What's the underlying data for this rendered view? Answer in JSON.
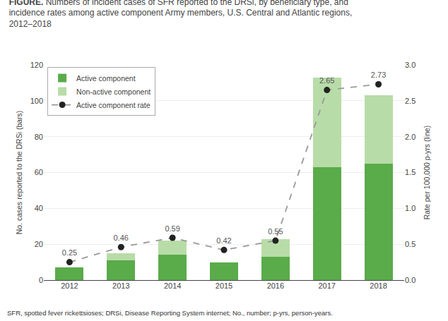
{
  "chart_data": {
    "type": "bar",
    "title": "FIGURE. Numbers of incident cases of SFR reported to the DRSi, by beneficiary type, and\nincidence rates among active component Army members, U.S. Central and Atlantic regions,\n2012–2018",
    "categories": [
      "2012",
      "2013",
      "2014",
      "2015",
      "2016",
      "2017",
      "2018"
    ],
    "stacked": true,
    "series": [
      {
        "name": "Active component",
        "color": "#5aab4a",
        "values": [
          7,
          11,
          14,
          10,
          13,
          63,
          65
        ]
      },
      {
        "name": "Non-active component",
        "color": "#b8dca8",
        "values": [
          0,
          4,
          8,
          0,
          10,
          50,
          38
        ]
      },
      {
        "name": "Active component rate",
        "type": "line",
        "axis": "y2",
        "color": "#999999",
        "colors": [
          "#222222",
          "#222222",
          "#222222",
          "#222222",
          "#222222",
          "#222222",
          "#222222"
        ],
        "line_style": "dashed",
        "marker": "circle",
        "data_labels": true,
        "values": [
          0.25,
          0.46,
          0.59,
          0.42,
          0.55,
          2.65,
          2.73
        ]
      }
    ],
    "ylabel": "No. cases reported to the DRSi (bars)",
    "y2label": "Rate per 100,000 p-yrs (line)",
    "ylim": [
      0,
      120
    ],
    "yticks": [
      0,
      20,
      40,
      60,
      80,
      100,
      120
    ],
    "y2lim": [
      0,
      3.0
    ],
    "y2ticks": [
      {
        "value": 0.0,
        "label": "0.0"
      },
      {
        "value": 0.5,
        "label": "0.5"
      },
      {
        "value": 1.0,
        "label": "1.0"
      },
      {
        "value": 1.5,
        "label": "1.5"
      },
      {
        "value": 2.0,
        "label": "2.0"
      },
      {
        "value": 2.5,
        "label": "2.5"
      },
      {
        "value": 3.0,
        "label": "3.0"
      }
    ],
    "grid": true,
    "legend": "upper left",
    "annotations": [
      "SFR, spotted fever rickettsioses; DRSi, Disease Reporting System internet; No., number; p-yrs, person-years."
    ]
  }
}
